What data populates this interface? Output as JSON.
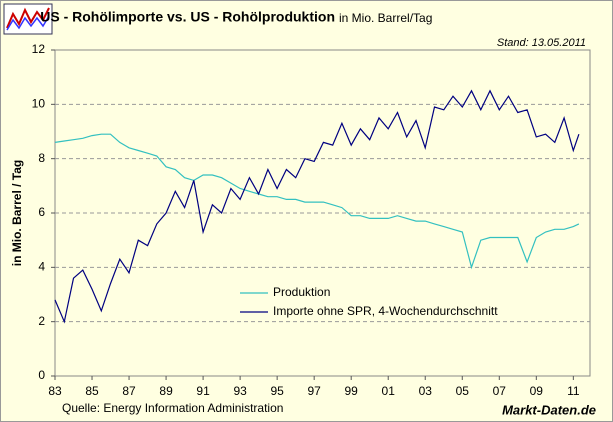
{
  "chart_data": {
    "type": "line",
    "title": "US - Rohölimporte vs. US - Rohölproduktion",
    "title_unit": "in Mio. Barrel/Tag",
    "date_note": "Stand: 13.05.2011",
    "ylabel": "in Mio. Barrel / Tag",
    "source": "Quelle: Energy Information Administration",
    "brand": "Markt-Daten.de",
    "x": [
      1983,
      1983.5,
      1984,
      1984.5,
      1985,
      1985.5,
      1986,
      1986.5,
      1987,
      1987.5,
      1988,
      1988.5,
      1989,
      1989.5,
      1990,
      1990.5,
      1991,
      1991.5,
      1992,
      1992.5,
      1993,
      1993.5,
      1994,
      1994.5,
      1995,
      1995.5,
      1996,
      1996.5,
      1997,
      1997.5,
      1998,
      1998.5,
      1999,
      1999.5,
      2000,
      2000.5,
      2001,
      2001.5,
      2002,
      2002.5,
      2003,
      2003.5,
      2004,
      2004.5,
      2005,
      2005.5,
      2006,
      2006.5,
      2007,
      2007.5,
      2008,
      2008.5,
      2009,
      2009.5,
      2010,
      2010.5,
      2011,
      2011.3
    ],
    "series": [
      {
        "name": "Produktion",
        "color": "#33c0c0",
        "values": [
          8.6,
          8.65,
          8.7,
          8.75,
          8.85,
          8.9,
          8.9,
          8.6,
          8.4,
          8.3,
          8.2,
          8.1,
          7.7,
          7.6,
          7.3,
          7.2,
          7.4,
          7.4,
          7.3,
          7.1,
          6.9,
          6.8,
          6.7,
          6.6,
          6.6,
          6.5,
          6.5,
          6.4,
          6.4,
          6.4,
          6.3,
          6.2,
          5.9,
          5.9,
          5.8,
          5.8,
          5.8,
          5.9,
          5.8,
          5.7,
          5.7,
          5.6,
          5.5,
          5.4,
          5.3,
          4.0,
          5.0,
          5.1,
          5.1,
          5.1,
          5.1,
          4.2,
          5.1,
          5.3,
          5.4,
          5.4,
          5.5,
          5.6
        ]
      },
      {
        "name": "Importe ohne SPR, 4-Wochendurchschnitt",
        "color": "#000080",
        "values": [
          2.8,
          2.0,
          3.6,
          3.9,
          3.2,
          2.4,
          3.4,
          4.3,
          3.8,
          5.0,
          4.8,
          5.6,
          6.0,
          6.8,
          6.2,
          7.2,
          5.3,
          6.3,
          6.0,
          6.9,
          6.5,
          7.3,
          6.7,
          7.6,
          6.9,
          7.6,
          7.3,
          8.0,
          7.9,
          8.6,
          8.5,
          9.3,
          8.5,
          9.1,
          8.7,
          9.5,
          9.1,
          9.7,
          8.8,
          9.4,
          8.4,
          9.9,
          9.8,
          10.3,
          9.9,
          10.5,
          9.8,
          10.5,
          9.8,
          10.3,
          9.7,
          9.8,
          8.8,
          8.9,
          8.6,
          9.5,
          8.3,
          8.9
        ]
      }
    ],
    "xlim": [
      1983,
      2011.9
    ],
    "xticks": [
      {
        "value": 1983,
        "label": "83"
      },
      {
        "value": 1985,
        "label": "85"
      },
      {
        "value": 1987,
        "label": "87"
      },
      {
        "value": 1989,
        "label": "89"
      },
      {
        "value": 1991,
        "label": "91"
      },
      {
        "value": 1993,
        "label": "93"
      },
      {
        "value": 1995,
        "label": "95"
      },
      {
        "value": 1997,
        "label": "97"
      },
      {
        "value": 1999,
        "label": "99"
      },
      {
        "value": 2001,
        "label": "01"
      },
      {
        "value": 2003,
        "label": "03"
      },
      {
        "value": 2005,
        "label": "05"
      },
      {
        "value": 2007,
        "label": "07"
      },
      {
        "value": 2009,
        "label": "09"
      },
      {
        "value": 2011,
        "label": "11"
      }
    ],
    "ylim": [
      0,
      12
    ],
    "yticks": [
      0,
      2,
      4,
      6,
      8,
      10,
      12
    ],
    "grid": true
  }
}
